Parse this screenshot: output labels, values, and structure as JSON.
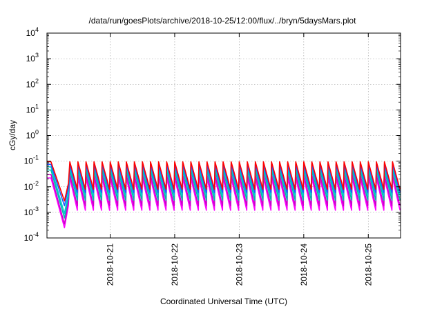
{
  "chart_data": {
    "type": "line",
    "title": "/data/run/goesPlots/archive/2018-10-25/12:00/flux/../bryn/5daysMars.plot",
    "xlabel": "Coordinated Universal Time (UTC)",
    "ylabel": "cGy/day",
    "y_scale": "log",
    "ylim": [
      0.0001,
      10000
    ],
    "y_ticks": [
      {
        "base": "10",
        "exp": "-4"
      },
      {
        "base": "10",
        "exp": "-3"
      },
      {
        "base": "10",
        "exp": "-2"
      },
      {
        "base": "10",
        "exp": "-1"
      },
      {
        "base": "10",
        "exp": "0"
      },
      {
        "base": "10",
        "exp": "1"
      },
      {
        "base": "10",
        "exp": "2"
      },
      {
        "base": "10",
        "exp": "3"
      },
      {
        "base": "10",
        "exp": "4"
      }
    ],
    "xlim": [
      "2018-10-20T00:30",
      "2018-10-25T12:00"
    ],
    "x_ticks": [
      "2018-10-21",
      "2018-10-22",
      "2018-10-23",
      "2018-10-24",
      "2018-10-25"
    ],
    "grid": true,
    "cycle_hours": 3,
    "series": [
      {
        "color": "#ff00ff",
        "peak": 0.022,
        "trough": 0.0012,
        "event_min": 0.00025
      },
      {
        "color": "#cc00cc",
        "peak": 0.03,
        "trough": 0.0018,
        "event_min": 0.00035
      },
      {
        "color": "#00bbaa",
        "peak": 0.045,
        "trough": 0.003,
        "event_min": 0.0006
      },
      {
        "color": "#00cccc",
        "peak": 0.06,
        "trough": 0.0045,
        "event_min": 0.0009
      },
      {
        "color": "#2255ff",
        "peak": 0.075,
        "trough": 0.006,
        "event_min": 0.0018
      },
      {
        "color": "#ff0000",
        "peak": 0.095,
        "trough": 0.008,
        "event_min": 0.0028
      }
    ]
  }
}
